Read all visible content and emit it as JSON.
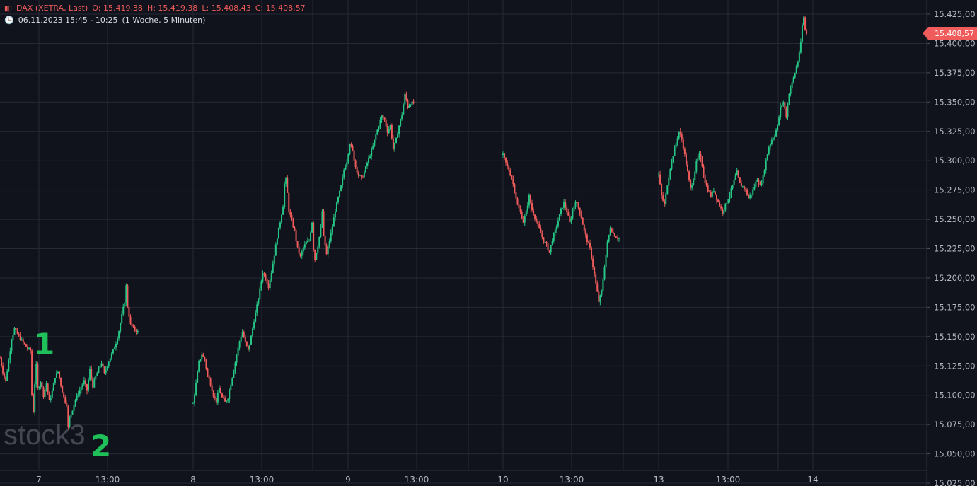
{
  "header": {
    "symbol": "DAX (XETRA, Last)",
    "open": "O: 15.419,38",
    "high": "H: 15.419,38",
    "low": "L: 15.408,43",
    "close": "C: 15.408,57",
    "range": "06.11.2023 15:45 - 10:25",
    "interval": "(1 Woche, 5 Minuten)"
  },
  "last_price_label": "15.408,57",
  "annotations": {
    "marker1": "1",
    "marker2": "2"
  },
  "watermark": "stock3",
  "colors": {
    "up": "#26c687",
    "down": "#ef5b5b",
    "background": "#10131b",
    "grid": "#262a34"
  },
  "chart_data": {
    "type": "candlestick",
    "title": "",
    "ylim": [
      15025,
      15425
    ],
    "y_ticks": [
      "15.425,00",
      "15.400,00",
      "15.375,00",
      "15.350,00",
      "15.325,00",
      "15.300,00",
      "15.275,00",
      "15.250,00",
      "15.225,00",
      "15.200,00",
      "15.175,00",
      "15.150,00",
      "15.125,00",
      "15.100,00",
      "15.075,00",
      "15.050,00",
      "15.025,00"
    ],
    "x_ticks": [
      "7",
      "13:00",
      "8",
      "13:00",
      "9",
      "13:00",
      "10",
      "13:00",
      "13",
      "13:00",
      "14"
    ],
    "sessions": [
      {
        "day": "7",
        "path": [
          [
            0,
            15132
          ],
          [
            2,
            15120
          ],
          [
            4,
            15112
          ],
          [
            8,
            15148
          ],
          [
            10,
            15157
          ],
          [
            13,
            15150
          ],
          [
            16,
            15145
          ],
          [
            19,
            15140
          ],
          [
            21,
            15138
          ],
          [
            22,
            15100
          ],
          [
            23,
            15086
          ],
          [
            24,
            15110
          ],
          [
            25,
            15125
          ],
          [
            26,
            15105
          ],
          [
            28,
            15112
          ],
          [
            30,
            15100
          ],
          [
            32,
            15110
          ],
          [
            34,
            15095
          ],
          [
            36,
            15103
          ],
          [
            38,
            15116
          ],
          [
            40,
            15120
          ],
          [
            42,
            15109
          ],
          [
            44,
            15098
          ],
          [
            46,
            15092
          ],
          [
            47,
            15072
          ],
          [
            48,
            15080
          ],
          [
            50,
            15088
          ],
          [
            52,
            15096
          ],
          [
            54,
            15102
          ],
          [
            56,
            15107
          ],
          [
            58,
            15112
          ],
          [
            60,
            15104
          ],
          [
            62,
            15122
          ],
          [
            64,
            15108
          ],
          [
            66,
            15116
          ],
          [
            68,
            15122
          ],
          [
            70,
            15128
          ],
          [
            72,
            15118
          ],
          [
            74,
            15126
          ],
          [
            76,
            15132
          ],
          [
            78,
            15138
          ],
          [
            80,
            15145
          ],
          [
            82,
            15155
          ],
          [
            84,
            15168
          ],
          [
            86,
            15180
          ],
          [
            87,
            15193
          ],
          [
            88,
            15176
          ],
          [
            90,
            15160
          ],
          [
            92,
            15157
          ],
          [
            95,
            15154
          ]
        ]
      },
      {
        "day": "8",
        "path": [
          [
            0,
            15093
          ],
          [
            2,
            15110
          ],
          [
            4,
            15128
          ],
          [
            6,
            15135
          ],
          [
            8,
            15130
          ],
          [
            10,
            15117
          ],
          [
            12,
            15110
          ],
          [
            14,
            15100
          ],
          [
            16,
            15095
          ],
          [
            18,
            15106
          ],
          [
            20,
            15098
          ],
          [
            22,
            15094
          ],
          [
            24,
            15098
          ],
          [
            26,
            15110
          ],
          [
            28,
            15122
          ],
          [
            30,
            15134
          ],
          [
            32,
            15146
          ],
          [
            34,
            15154
          ],
          [
            36,
            15145
          ],
          [
            38,
            15138
          ],
          [
            40,
            15150
          ],
          [
            42,
            15164
          ],
          [
            44,
            15176
          ],
          [
            46,
            15190
          ],
          [
            48,
            15205
          ],
          [
            50,
            15200
          ],
          [
            52,
            15193
          ],
          [
            54,
            15205
          ],
          [
            56,
            15220
          ],
          [
            58,
            15235
          ],
          [
            60,
            15248
          ],
          [
            62,
            15262
          ],
          [
            63,
            15280
          ],
          [
            64,
            15284
          ],
          [
            65,
            15272
          ],
          [
            66,
            15258
          ],
          [
            68,
            15248
          ],
          [
            70,
            15240
          ],
          [
            72,
            15225
          ],
          [
            74,
            15218
          ],
          [
            76,
            15226
          ],
          [
            78,
            15230
          ],
          [
            80,
            15232
          ],
          [
            82,
            15248
          ],
          [
            83,
            15225
          ],
          [
            84,
            15216
          ],
          [
            86,
            15228
          ],
          [
            88,
            15242
          ],
          [
            89,
            15257
          ],
          [
            90,
            15235
          ],
          [
            92,
            15220
          ],
          [
            94,
            15232
          ],
          [
            96,
            15244
          ],
          [
            98,
            15258
          ],
          [
            100,
            15268
          ],
          [
            102,
            15278
          ],
          [
            104,
            15292
          ],
          [
            106,
            15300
          ],
          [
            108,
            15315
          ],
          [
            110,
            15308
          ],
          [
            112,
            15295
          ],
          [
            114,
            15288
          ],
          [
            116,
            15285
          ],
          [
            118,
            15290
          ],
          [
            120,
            15298
          ],
          [
            122,
            15305
          ],
          [
            124,
            15312
          ],
          [
            126,
            15322
          ],
          [
            128,
            15330
          ],
          [
            130,
            15338
          ],
          [
            132,
            15335
          ],
          [
            134,
            15325
          ],
          [
            136,
            15330
          ],
          [
            138,
            15310
          ],
          [
            140,
            15318
          ],
          [
            142,
            15330
          ],
          [
            144,
            15340
          ],
          [
            146,
            15356
          ],
          [
            147,
            15352
          ],
          [
            148,
            15346
          ],
          [
            150,
            15349
          ],
          [
            152,
            15349
          ]
        ]
      },
      {
        "day": "10",
        "path": [
          [
            0,
            15305
          ],
          [
            2,
            15298
          ],
          [
            4,
            15292
          ],
          [
            6,
            15285
          ],
          [
            8,
            15275
          ],
          [
            10,
            15262
          ],
          [
            12,
            15256
          ],
          [
            14,
            15248
          ],
          [
            16,
            15256
          ],
          [
            18,
            15270
          ],
          [
            20,
            15258
          ],
          [
            22,
            15252
          ],
          [
            24,
            15245
          ],
          [
            26,
            15238
          ],
          [
            28,
            15232
          ],
          [
            30,
            15228
          ],
          [
            32,
            15222
          ],
          [
            34,
            15233
          ],
          [
            36,
            15240
          ],
          [
            38,
            15249
          ],
          [
            40,
            15258
          ],
          [
            42,
            15264
          ],
          [
            44,
            15257
          ],
          [
            46,
            15247
          ],
          [
            48,
            15257
          ],
          [
            50,
            15266
          ],
          [
            52,
            15260
          ],
          [
            54,
            15252
          ],
          [
            56,
            15240
          ],
          [
            58,
            15232
          ],
          [
            60,
            15225
          ],
          [
            62,
            15210
          ],
          [
            64,
            15195
          ],
          [
            66,
            15180
          ],
          [
            68,
            15188
          ],
          [
            70,
            15210
          ],
          [
            72,
            15230
          ],
          [
            74,
            15243
          ],
          [
            76,
            15238
          ],
          [
            78,
            15235
          ],
          [
            80,
            15234
          ]
        ]
      },
      {
        "day": "13",
        "path": [
          [
            0,
            15288
          ],
          [
            2,
            15270
          ],
          [
            4,
            15262
          ],
          [
            6,
            15280
          ],
          [
            8,
            15294
          ],
          [
            10,
            15305
          ],
          [
            12,
            15315
          ],
          [
            14,
            15325
          ],
          [
            16,
            15318
          ],
          [
            18,
            15305
          ],
          [
            20,
            15290
          ],
          [
            22,
            15276
          ],
          [
            24,
            15285
          ],
          [
            26,
            15298
          ],
          [
            28,
            15305
          ],
          [
            30,
            15296
          ],
          [
            32,
            15282
          ],
          [
            34,
            15275
          ],
          [
            36,
            15270
          ],
          [
            38,
            15275
          ],
          [
            40,
            15268
          ],
          [
            42,
            15262
          ],
          [
            44,
            15256
          ],
          [
            46,
            15262
          ],
          [
            48,
            15268
          ],
          [
            50,
            15275
          ],
          [
            52,
            15283
          ],
          [
            54,
            15290
          ],
          [
            56,
            15280
          ],
          [
            58,
            15278
          ],
          [
            60,
            15275
          ],
          [
            62,
            15268
          ],
          [
            64,
            15272
          ],
          [
            66,
            15278
          ],
          [
            68,
            15285
          ],
          [
            70,
            15278
          ],
          [
            72,
            15286
          ],
          [
            74,
            15300
          ],
          [
            76,
            15312
          ],
          [
            78,
            15318
          ],
          [
            80,
            15322
          ],
          [
            82,
            15330
          ],
          [
            84,
            15345
          ],
          [
            86,
            15350
          ],
          [
            88,
            15338
          ],
          [
            90,
            15358
          ],
          [
            92,
            15366
          ],
          [
            94,
            15375
          ],
          [
            96,
            15385
          ],
          [
            98,
            15400
          ],
          [
            99,
            15415
          ],
          [
            100,
            15422
          ],
          [
            101,
            15412
          ],
          [
            102,
            15408
          ]
        ]
      }
    ]
  }
}
